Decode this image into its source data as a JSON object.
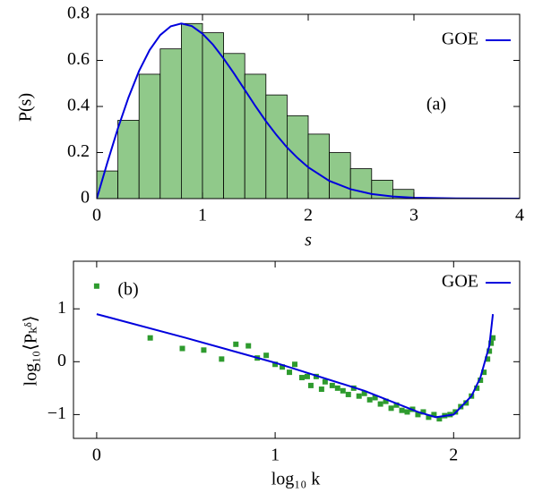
{
  "chart_data": [
    {
      "type": "histogram",
      "annotation": "(a)",
      "xlabel": "s",
      "ylabel": "P(s)",
      "bins": [
        0,
        0.2,
        0.4,
        0.6,
        0.8,
        1.0,
        1.2,
        1.4,
        1.6,
        1.8,
        2.0,
        2.2,
        2.4,
        2.6,
        2.8,
        3.0
      ],
      "counts": [
        0.12,
        0.34,
        0.54,
        0.65,
        0.76,
        0.72,
        0.63,
        0.54,
        0.45,
        0.36,
        0.28,
        0.2,
        0.13,
        0.08,
        0.04
      ],
      "color": "#90c98a",
      "edgecolor": "#000000",
      "series": [
        {
          "name": "GOE",
          "color": "#0000dd",
          "x": [
            0,
            0.1,
            0.2,
            0.3,
            0.4,
            0.5,
            0.6,
            0.7,
            0.8,
            0.9,
            1.0,
            1.1,
            1.2,
            1.3,
            1.4,
            1.5,
            1.6,
            1.7,
            1.8,
            1.9,
            2.0,
            2.2,
            2.4,
            2.6,
            2.8,
            3.0,
            3.4,
            4.0
          ],
          "values": [
            0,
            0.156,
            0.305,
            0.439,
            0.554,
            0.645,
            0.71,
            0.748,
            0.76,
            0.749,
            0.716,
            0.668,
            0.608,
            0.542,
            0.472,
            0.402,
            0.336,
            0.276,
            0.222,
            0.176,
            0.136,
            0.077,
            0.041,
            0.02,
            0.009,
            0.004,
            0.001,
            0
          ]
        }
      ],
      "xlim": [
        0,
        4
      ],
      "ylim": [
        0,
        0.8
      ],
      "xticks": [
        0,
        1,
        2,
        3,
        4
      ],
      "yticks": [
        0,
        0.2,
        0.4,
        0.6,
        0.8
      ],
      "legend": "upper right"
    },
    {
      "type": "scatter",
      "annotation": "(b)",
      "xlabel": "log₁₀ k",
      "ylabel": "log₁₀⟨Pₖᵟ⟩",
      "color": "#2e9b2e",
      "x": [
        0,
        0.3,
        0.48,
        0.6,
        0.7,
        0.78,
        0.85,
        0.9,
        0.95,
        1.0,
        1.04,
        1.08,
        1.11,
        1.15,
        1.18,
        1.2,
        1.23,
        1.26,
        1.28,
        1.32,
        1.35,
        1.38,
        1.41,
        1.44,
        1.47,
        1.5,
        1.53,
        1.56,
        1.59,
        1.62,
        1.65,
        1.68,
        1.71,
        1.74,
        1.77,
        1.8,
        1.83,
        1.86,
        1.89,
        1.92,
        1.95,
        1.98,
        2.01,
        2.04,
        2.07,
        2.1,
        2.13,
        2.15,
        2.17,
        2.19,
        2.2,
        2.21,
        2.22
      ],
      "values": [
        1.43,
        0.45,
        0.25,
        0.22,
        0.05,
        0.33,
        0.3,
        0.07,
        0.12,
        -0.05,
        -0.1,
        -0.2,
        -0.05,
        -0.3,
        -0.28,
        -0.45,
        -0.28,
        -0.52,
        -0.38,
        -0.45,
        -0.5,
        -0.55,
        -0.62,
        -0.5,
        -0.65,
        -0.6,
        -0.72,
        -0.68,
        -0.8,
        -0.75,
        -0.88,
        -0.82,
        -0.92,
        -0.95,
        -0.9,
        -1.0,
        -0.95,
        -1.05,
        -1.0,
        -1.08,
        -1.02,
        -1.0,
        -0.95,
        -0.85,
        -0.78,
        -0.65,
        -0.5,
        -0.35,
        -0.2,
        0.05,
        0.2,
        0.35,
        0.45
      ],
      "series": [
        {
          "name": "GOE",
          "color": "#0000dd",
          "x": [
            0,
            0.5,
            1.0,
            1.5,
            1.8,
            1.9,
            2.0,
            2.1,
            2.15,
            2.2,
            2.22
          ],
          "values": [
            0.9,
            0.45,
            -0.02,
            -0.55,
            -0.95,
            -1.05,
            -1.0,
            -0.65,
            -0.3,
            0.3,
            0.9
          ]
        }
      ],
      "xlim": [
        -0.13,
        2.37
      ],
      "ylim": [
        -1.45,
        1.9
      ],
      "xticks": [
        0,
        1,
        2
      ],
      "yticks": [
        {
          "value": -1,
          "label": "−1"
        },
        0,
        1
      ],
      "legend": "upper right"
    }
  ]
}
